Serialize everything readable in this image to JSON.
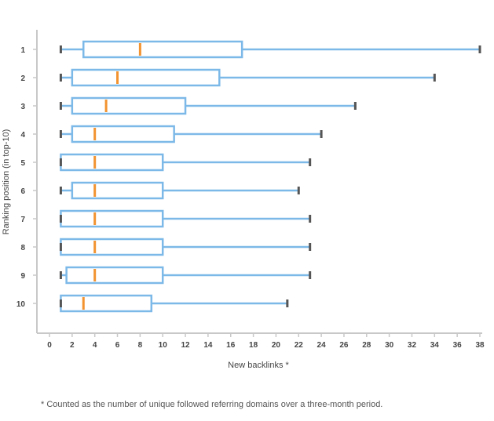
{
  "chart_data": {
    "type": "boxplot",
    "orientation": "horizontal",
    "xlabel": "New backlinks *",
    "ylabel": "Ranking position (in top-10)",
    "xlim": [
      0,
      38
    ],
    "x_ticks": [
      "0",
      "2",
      "4",
      "6",
      "8",
      "10",
      "12",
      "14",
      "16",
      "18",
      "20",
      "22",
      "24",
      "26",
      "28",
      "30",
      "32",
      "34",
      "36",
      "38"
    ],
    "categories": [
      "1",
      "2",
      "3",
      "4",
      "5",
      "6",
      "7",
      "8",
      "9",
      "10"
    ],
    "boxes": [
      {
        "position": "1",
        "min": 1,
        "q1": 3,
        "median": 8,
        "q3": 17,
        "max": 38
      },
      {
        "position": "2",
        "min": 1,
        "q1": 2,
        "median": 6,
        "q3": 15,
        "max": 34
      },
      {
        "position": "3",
        "min": 1,
        "q1": 2,
        "median": 5,
        "q3": 12,
        "max": 27
      },
      {
        "position": "4",
        "min": 1,
        "q1": 2,
        "median": 4,
        "q3": 11,
        "max": 24
      },
      {
        "position": "5",
        "min": 1,
        "q1": 1,
        "median": 4,
        "q3": 10,
        "max": 23
      },
      {
        "position": "6",
        "min": 1,
        "q1": 2,
        "median": 4,
        "q3": 10,
        "max": 22
      },
      {
        "position": "7",
        "min": 1,
        "q1": 1,
        "median": 4,
        "q3": 10,
        "max": 23
      },
      {
        "position": "8",
        "min": 1,
        "q1": 1,
        "median": 4,
        "q3": 10,
        "max": 23
      },
      {
        "position": "9",
        "min": 1,
        "q1": 1.5,
        "median": 4,
        "q3": 10,
        "max": 23
      },
      {
        "position": "10",
        "min": 1,
        "q1": 1,
        "median": 3,
        "q3": 9,
        "max": 21
      }
    ],
    "colors": {
      "box": "#7db9e8",
      "median": "#f29330",
      "whisker_cap": "#555555",
      "axis": "#c8c8c8"
    }
  },
  "footnote": "* Counted as the number of unique followed referring domains over a three-month period."
}
